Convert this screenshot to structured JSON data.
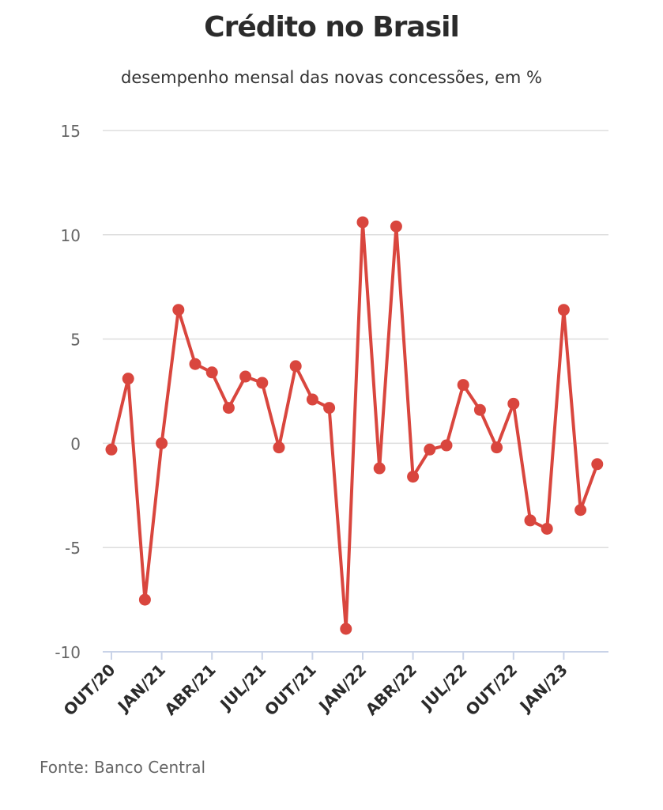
{
  "chart_data": {
    "type": "line",
    "title": "Crédito no Brasil",
    "subtitle": "desempenho mensal das novas concessões, em %",
    "x_tick_labels": [
      "OUT/20",
      "JAN/21",
      "ABR/21",
      "JUL/21",
      "OUT/21",
      "JAN/22",
      "ABR/22",
      "JUL/22",
      "OUT/22",
      "JAN/23"
    ],
    "x": [
      "OUT/20",
      "NOV/20",
      "DEZ/20",
      "JAN/21",
      "FEV/21",
      "MAR/21",
      "ABR/21",
      "MAI/21",
      "JUN/21",
      "JUL/21",
      "AGO/21",
      "SET/21",
      "OUT/21",
      "NOV/21",
      "DEZ/21",
      "JAN/22",
      "FEV/22",
      "MAR/22",
      "ABR/22",
      "MAI/22",
      "JUN/22",
      "JUL/22",
      "AGO/22",
      "SET/22",
      "OUT/22",
      "NOV/22",
      "DEZ/22",
      "JAN/23",
      "FEV/23",
      "MAR/23"
    ],
    "series": [
      {
        "values": [
          -0.3,
          3.1,
          -7.5,
          0.0,
          6.4,
          3.8,
          3.4,
          1.7,
          3.2,
          2.9,
          -0.2,
          3.7,
          2.1,
          1.7,
          -8.9,
          10.6,
          -1.2,
          10.4,
          -1.6,
          -0.3,
          -0.1,
          2.8,
          1.6,
          -0.2,
          1.9,
          -3.7,
          -4.1,
          6.4,
          -3.2,
          -1.0
        ]
      }
    ],
    "ylim": [
      -10,
      15
    ],
    "yticks": [
      15,
      10,
      5,
      0,
      -5,
      -10
    ],
    "grid": true,
    "line_color": "#d9463e",
    "grid_color": "#dddddd"
  },
  "source": "Fonte: Banco Central"
}
